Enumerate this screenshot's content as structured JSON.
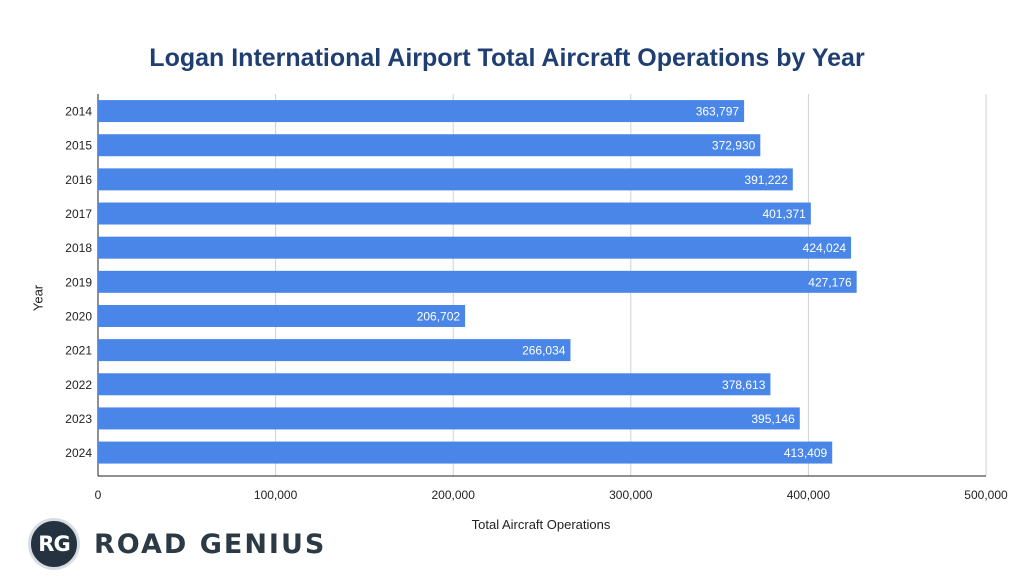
{
  "chart_data": {
    "type": "bar",
    "orientation": "horizontal",
    "title": "Logan International Airport Total Aircraft Operations by Year",
    "xlabel": "Total Aircraft Operations",
    "ylabel": "Year",
    "categories": [
      "2014",
      "2015",
      "2016",
      "2017",
      "2018",
      "2019",
      "2020",
      "2021",
      "2022",
      "2023",
      "2024"
    ],
    "values": [
      363797,
      372930,
      391222,
      401371,
      424024,
      427176,
      206702,
      266034,
      378613,
      395146,
      413409
    ],
    "value_labels": [
      "363,797",
      "372,930",
      "391,222",
      "401,371",
      "424,024",
      "427,176",
      "206,702",
      "266,034",
      "378,613",
      "395,146",
      "413,409"
    ],
    "xlim": [
      0,
      500000
    ],
    "xticks": [
      0,
      100000,
      200000,
      300000,
      400000,
      500000
    ],
    "xtick_labels": [
      "0",
      "100,000",
      "200,000",
      "300,000",
      "400,000",
      "500,000"
    ],
    "grid": true,
    "bar_color": "#4a86e8"
  },
  "brand": {
    "badge_text": "RG",
    "name": "ROAD GENIUS"
  }
}
